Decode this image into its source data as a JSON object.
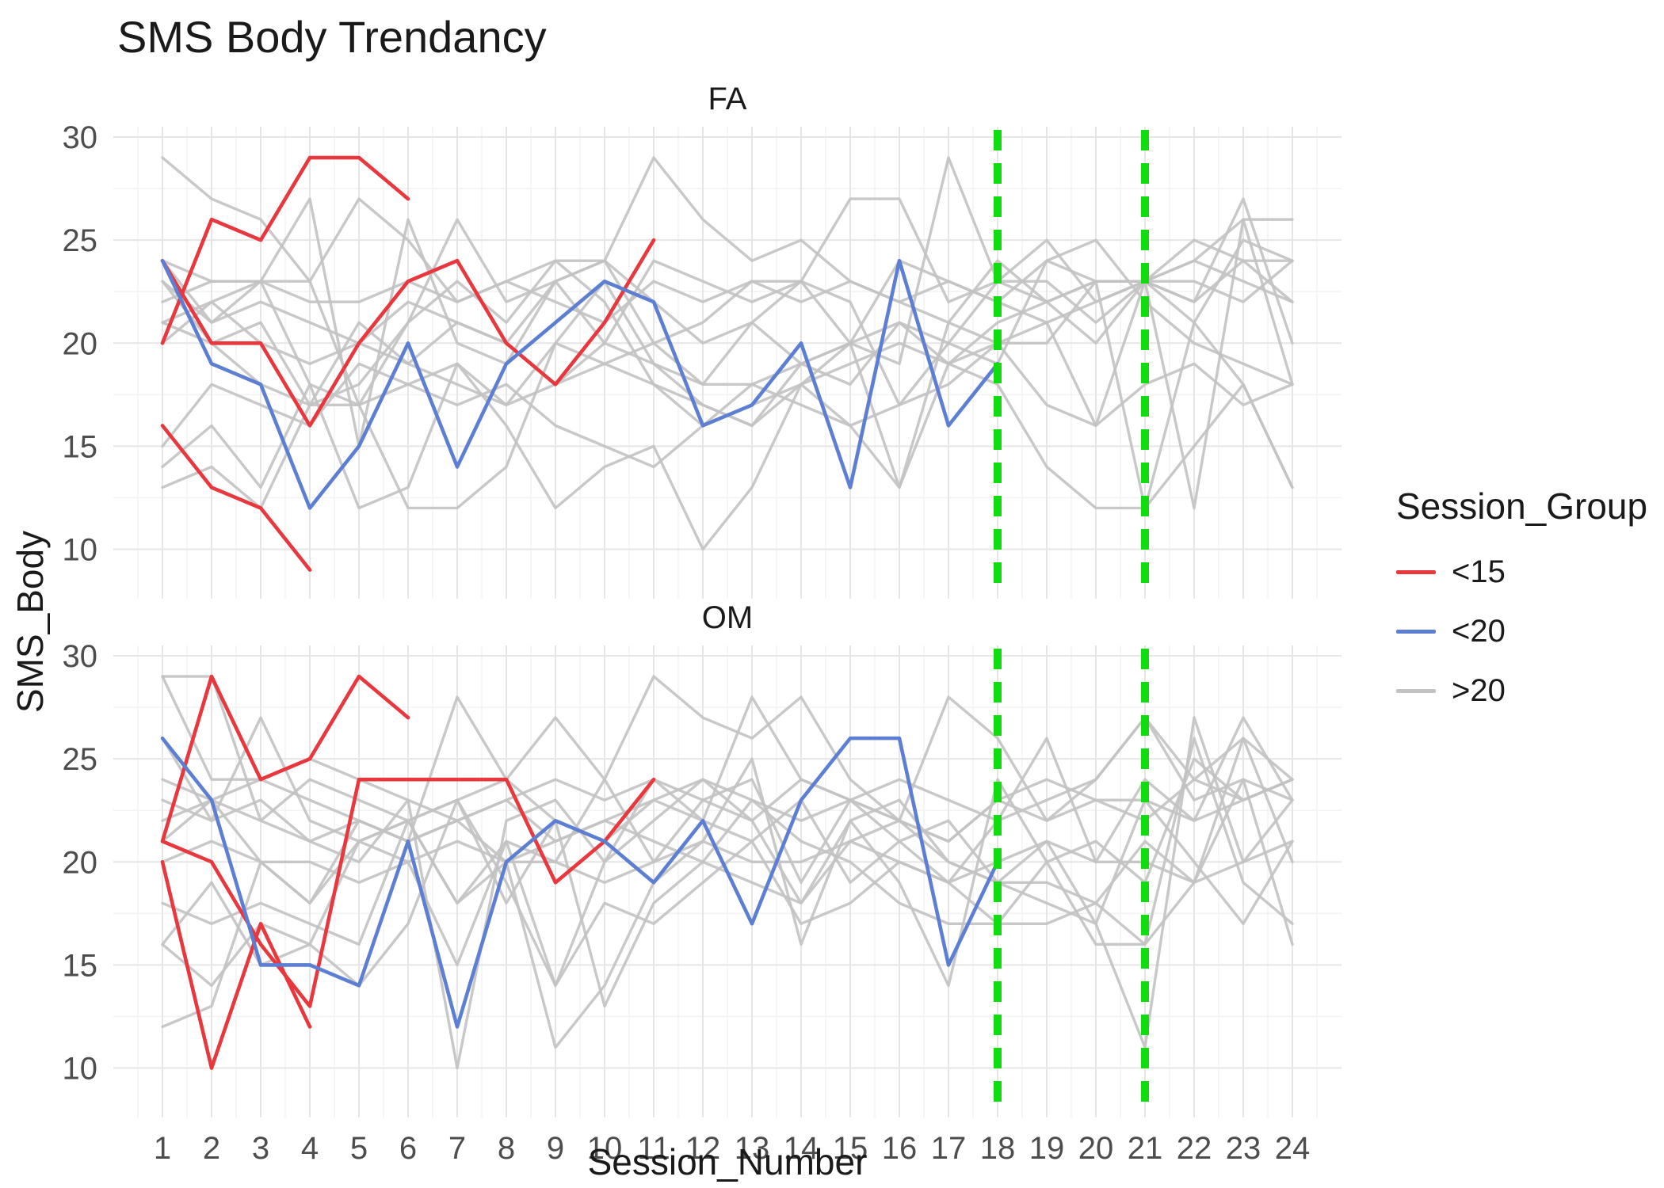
{
  "chart_data": {
    "type": "line",
    "title": "SMS Body Trendancy",
    "xlabel": "Session_Number",
    "ylabel": "SMS_Body",
    "facets": [
      "FA",
      "OM"
    ],
    "x_ticks": [
      1,
      2,
      3,
      4,
      5,
      6,
      7,
      8,
      9,
      10,
      11,
      12,
      13,
      14,
      15,
      16,
      17,
      18,
      19,
      20,
      21,
      22,
      23,
      24
    ],
    "y_ticks": [
      10,
      15,
      20,
      25,
      30
    ],
    "xlim": [
      0,
      25
    ],
    "ylim": [
      7.6,
      30.5
    ],
    "grid": true,
    "background": "#ffffff",
    "colors": {
      "<15": "#e8373d",
      "<20": "#5d7fd3",
      ">20": "#c2c2c2",
      "vline": "#10dc10",
      "grid_major": "#e6e6e6",
      "grid_minor": "#f3f3f3",
      "tick_text": "#4d4d4d",
      "text": "#1a1a1a"
    },
    "legend": {
      "title": "Session_Group",
      "position": "right",
      "entries": [
        {
          "label": "<15",
          "group": "<15"
        },
        {
          "label": "<20",
          "group": "<20"
        },
        {
          "label": ">20",
          "group": ">20"
        }
      ]
    },
    "vlines": {
      "x": [
        18,
        21
      ],
      "style": "dashed"
    },
    "series": [
      {
        "facet": "FA",
        "group": "<15",
        "y": [
          20,
          26,
          25,
          29,
          29,
          27
        ]
      },
      {
        "facet": "FA",
        "group": "<15",
        "y": [
          16,
          13,
          12,
          9
        ]
      },
      {
        "facet": "FA",
        "group": "<15",
        "y": [
          24,
          20,
          20,
          16,
          20,
          23,
          24,
          20,
          18,
          21,
          25
        ]
      },
      {
        "facet": "FA",
        "group": "<20",
        "y": [
          24,
          19,
          18,
          12,
          15,
          20,
          14,
          19,
          21,
          23,
          22,
          16,
          17,
          20,
          13,
          24,
          16,
          19
        ]
      },
      {
        "facet": "FA",
        "group": ">20",
        "y": [
          29,
          27,
          26,
          23,
          27,
          25,
          22,
          23,
          24,
          24,
          29,
          26,
          24,
          25,
          23,
          22,
          21,
          24,
          22,
          23,
          23,
          24,
          26,
          26
        ]
      },
      {
        "facet": "FA",
        "group": ">20",
        "y": [
          24,
          21,
          23,
          23,
          17,
          21,
          26,
          22,
          23,
          24,
          20,
          21,
          23,
          23,
          27,
          27,
          22,
          23,
          25,
          22,
          23,
          22,
          24,
          22
        ]
      },
      {
        "facet": "FA",
        "group": ">20",
        "y": [
          21,
          22,
          23,
          18,
          12,
          13,
          19,
          17,
          18,
          20,
          19,
          18,
          21,
          19,
          20,
          24,
          23,
          22,
          24,
          23,
          23,
          21,
          25,
          24
        ]
      },
      {
        "facet": "FA",
        "group": ">20",
        "y": [
          14,
          16,
          13,
          18,
          17,
          18,
          19,
          16,
          12,
          14,
          15,
          10,
          13,
          18,
          16,
          13,
          19,
          18,
          14,
          12,
          12,
          15,
          18,
          13
        ]
      },
      {
        "facet": "FA",
        "group": ">20",
        "y": [
          13,
          14,
          12,
          17,
          17,
          12,
          12,
          14,
          20,
          23,
          19,
          17,
          16,
          19,
          18,
          21,
          19,
          20,
          21,
          16,
          23,
          12,
          26,
          18
        ]
      },
      {
        "facet": "FA",
        "group": ">20",
        "y": [
          23,
          20,
          21,
          17,
          18,
          21,
          23,
          21,
          24,
          22,
          18,
          16,
          17,
          18,
          19,
          20,
          19,
          21,
          22,
          20,
          23,
          24,
          23,
          22
        ]
      },
      {
        "facet": "FA",
        "group": ">20",
        "y": [
          22,
          23,
          23,
          27,
          15,
          26,
          20,
          19,
          23,
          20,
          24,
          23,
          22,
          23,
          22,
          17,
          20,
          23,
          23,
          21,
          23,
          25,
          24,
          24
        ]
      },
      {
        "facet": "FA",
        "group": ">20",
        "y": [
          21,
          20,
          18,
          17,
          21,
          19,
          18,
          17,
          20,
          19,
          20,
          18,
          18,
          19,
          20,
          21,
          20,
          19,
          24,
          25,
          22,
          20,
          19,
          18
        ]
      },
      {
        "facet": "FA",
        "group": ">20",
        "y": [
          24,
          23,
          23,
          22,
          22,
          23,
          22,
          23,
          22,
          21,
          23,
          22,
          23,
          22,
          23,
          22,
          23,
          22,
          21,
          22,
          23,
          23,
          22,
          24
        ]
      },
      {
        "facet": "FA",
        "group": ">20",
        "y": [
          15,
          18,
          17,
          16,
          19,
          18,
          17,
          18,
          16,
          15,
          14,
          16,
          18,
          17,
          16,
          17,
          18,
          20,
          17,
          16,
          18,
          19,
          17,
          18
        ]
      },
      {
        "facet": "FA",
        "group": ">20",
        "y": [
          20,
          22,
          20,
          19,
          20,
          22,
          21,
          20,
          23,
          24,
          22,
          20,
          21,
          23,
          20,
          19,
          29,
          23,
          22,
          23,
          23,
          22,
          27,
          20
        ]
      },
      {
        "facet": "FA",
        "group": ">20",
        "y": [
          23,
          21,
          22,
          21,
          20,
          19,
          21,
          20,
          18,
          19,
          18,
          17,
          16,
          18,
          20,
          13,
          21,
          20,
          20,
          23,
          12,
          21,
          18,
          13
        ]
      },
      {
        "facet": "OM",
        "group": "<15",
        "y": [
          21,
          29,
          24,
          25,
          29,
          27
        ]
      },
      {
        "facet": "OM",
        "group": "<15",
        "y": [
          20,
          10,
          17,
          12
        ]
      },
      {
        "facet": "OM",
        "group": "<15",
        "y": [
          21,
          20,
          16,
          13,
          24,
          24,
          24,
          24,
          19,
          21,
          24
        ]
      },
      {
        "facet": "OM",
        "group": "<20",
        "y": [
          26,
          23,
          15,
          15,
          14,
          21,
          12,
          20,
          22,
          21,
          19,
          22,
          17,
          23,
          26,
          26,
          15,
          20
        ]
      },
      {
        "facet": "OM",
        "group": ">20",
        "y": [
          29,
          29,
          22,
          21,
          22,
          21,
          28,
          24,
          27,
          24,
          29,
          27,
          26,
          28,
          24,
          22,
          28,
          26,
          22,
          24,
          27,
          24,
          26,
          24
        ]
      },
      {
        "facet": "OM",
        "group": ">20",
        "y": [
          12,
          13,
          20,
          18,
          21,
          22,
          18,
          21,
          14,
          20,
          22,
          24,
          22,
          18,
          21,
          22,
          20,
          19,
          21,
          17,
          11,
          27,
          20,
          23
        ]
      },
      {
        "facet": "OM",
        "group": ">20",
        "y": [
          22,
          23,
          24,
          23,
          22,
          21,
          22,
          23,
          21,
          22,
          23,
          24,
          23,
          22,
          23,
          22,
          21,
          23,
          22,
          23,
          23,
          22,
          23,
          24
        ]
      },
      {
        "facet": "OM",
        "group": ">20",
        "y": [
          16,
          14,
          17,
          16,
          21,
          22,
          23,
          18,
          22,
          13,
          18,
          20,
          23,
          21,
          20,
          18,
          17,
          17,
          20,
          16,
          16,
          26,
          19,
          17
        ]
      },
      {
        "facet": "OM",
        "group": ">20",
        "y": [
          23,
          22,
          27,
          22,
          21,
          20,
          15,
          21,
          20,
          24,
          20,
          23,
          24,
          19,
          23,
          21,
          19,
          22,
          26,
          20,
          24,
          22,
          27,
          23
        ]
      },
      {
        "facet": "OM",
        "group": ">20",
        "y": [
          21,
          23,
          20,
          18,
          22,
          21,
          22,
          20,
          11,
          14,
          19,
          21,
          25,
          16,
          22,
          19,
          14,
          24,
          20,
          21,
          19,
          25,
          23,
          24
        ]
      },
      {
        "facet": "OM",
        "group": ">20",
        "y": [
          26,
          22,
          23,
          21,
          20,
          23,
          10,
          22,
          23,
          20,
          24,
          22,
          21,
          23,
          19,
          21,
          22,
          19,
          18,
          17,
          23,
          20,
          17,
          21
        ]
      },
      {
        "facet": "OM",
        "group": ">20",
        "y": [
          18,
          17,
          18,
          17,
          16,
          22,
          18,
          20,
          21,
          22,
          21,
          20,
          19,
          18,
          22,
          23,
          20,
          19,
          19,
          18,
          21,
          19,
          24,
          16
        ]
      },
      {
        "facet": "OM",
        "group": ">20",
        "y": [
          24,
          23,
          22,
          24,
          23,
          22,
          23,
          24,
          22,
          21,
          23,
          22,
          28,
          24,
          23,
          22,
          21,
          23,
          24,
          23,
          22,
          24,
          23,
          24
        ]
      },
      {
        "facet": "OM",
        "group": ">20",
        "y": [
          20,
          21,
          20,
          20,
          19,
          20,
          21,
          20,
          20,
          19,
          20,
          21,
          20,
          20,
          21,
          20,
          19,
          20,
          21,
          20,
          20,
          19,
          20,
          21
        ]
      },
      {
        "facet": "OM",
        "group": ">20",
        "y": [
          16,
          19,
          15,
          16,
          14,
          17,
          23,
          19,
          14,
          18,
          17,
          19,
          21,
          17,
          18,
          20,
          19,
          17,
          17,
          18,
          16,
          19,
          26,
          20
        ]
      },
      {
        "facet": "OM",
        "group": ">20",
        "y": [
          29,
          24,
          24,
          25,
          24,
          23,
          22,
          23,
          24,
          23,
          24,
          23,
          22,
          24,
          23,
          24,
          23,
          22,
          23,
          24,
          27,
          23,
          24,
          23
        ]
      }
    ]
  }
}
